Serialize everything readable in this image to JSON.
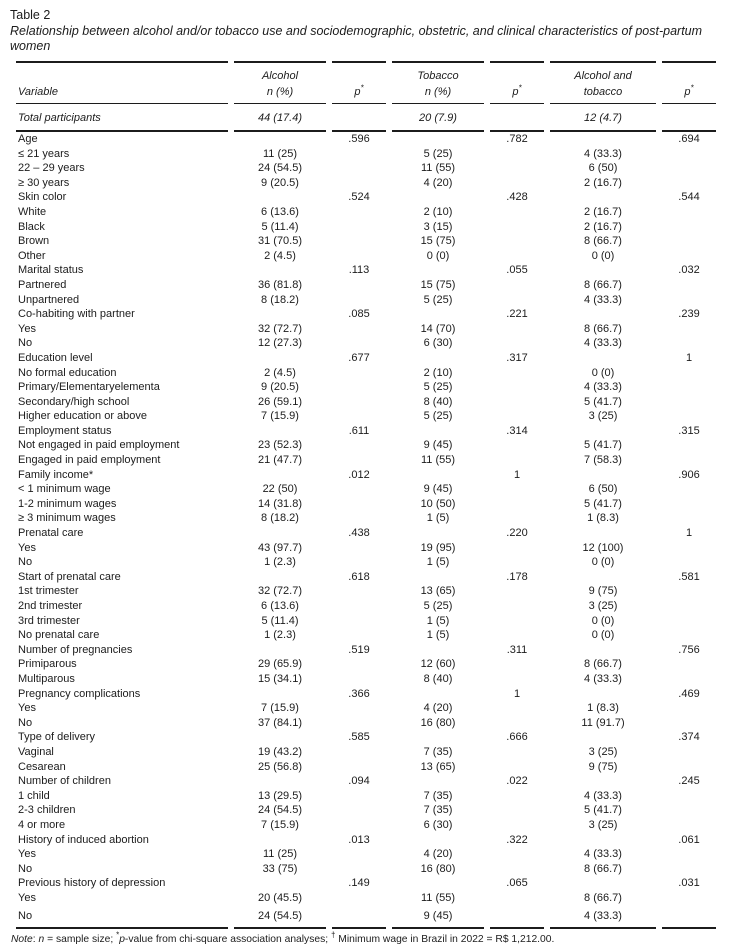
{
  "page": {
    "table_label": "Table 2",
    "title": "Relationship between alcohol and/or tobacco use and sociodemographic, obstetric, and clinical characteristics of post-partum women"
  },
  "header": {
    "variable": "Variable",
    "col1_top": "Alcohol",
    "col1_bottom": "n (%)",
    "col2_top": "Tobacco",
    "col2_bottom": "n (%)",
    "col3_top": "Alcohol and",
    "col3_bottom": "tobacco",
    "p_symbol": "p",
    "p_sup": "*"
  },
  "total_row": {
    "label": "Total participants",
    "alcohol": "44 (17.4)",
    "tobacco": "20 (7.9)",
    "both": "12 (4.7)"
  },
  "rows": [
    {
      "label": "Age",
      "indent": false,
      "alcohol": "",
      "p1": ".596",
      "tobacco": "",
      "p2": ".782",
      "both": "",
      "p3": ".694"
    },
    {
      "label": "≤ 21 years",
      "indent": true,
      "alcohol": "11 (25)",
      "p1": "",
      "tobacco": "5 (25)",
      "p2": "",
      "both": "4 (33.3)",
      "p3": ""
    },
    {
      "label": "22 – 29 years",
      "indent": true,
      "alcohol": "24 (54.5)",
      "p1": "",
      "tobacco": "11 (55)",
      "p2": "",
      "both": "6 (50)",
      "p3": ""
    },
    {
      "label": "≥ 30 years",
      "indent": true,
      "alcohol": "9 (20.5)",
      "p1": "",
      "tobacco": "4 (20)",
      "p2": "",
      "both": "2 (16.7)",
      "p3": ""
    },
    {
      "label": "Skin color",
      "indent": false,
      "alcohol": "",
      "p1": ".524",
      "tobacco": "",
      "p2": ".428",
      "both": "",
      "p3": ".544"
    },
    {
      "label": "White",
      "indent": true,
      "alcohol": "6 (13.6)",
      "p1": "",
      "tobacco": "2 (10)",
      "p2": "",
      "both": "2 (16.7)",
      "p3": ""
    },
    {
      "label": "Black",
      "indent": true,
      "alcohol": "5 (11.4)",
      "p1": "",
      "tobacco": "3 (15)",
      "p2": "",
      "both": "2 (16.7)",
      "p3": ""
    },
    {
      "label": "Brown",
      "indent": true,
      "alcohol": "31 (70.5)",
      "p1": "",
      "tobacco": "15 (75)",
      "p2": "",
      "both": "8 (66.7)",
      "p3": ""
    },
    {
      "label": "Other",
      "indent": true,
      "alcohol": "2 (4.5)",
      "p1": "",
      "tobacco": "0 (0)",
      "p2": "",
      "both": "0 (0)",
      "p3": ""
    },
    {
      "label": "Marital status",
      "indent": false,
      "alcohol": "",
      "p1": ".113",
      "tobacco": "",
      "p2": ".055",
      "both": "",
      "p3": ".032"
    },
    {
      "label": "Partnered",
      "indent": true,
      "alcohol": "36 (81.8)",
      "p1": "",
      "tobacco": "15 (75)",
      "p2": "",
      "both": "8 (66.7)",
      "p3": ""
    },
    {
      "label": "Unpartnered",
      "indent": true,
      "alcohol": "8 (18.2)",
      "p1": "",
      "tobacco": "5 (25)",
      "p2": "",
      "both": "4 (33.3)",
      "p3": ""
    },
    {
      "label": "Co-habiting with partner",
      "indent": false,
      "alcohol": "",
      "p1": ".085",
      "tobacco": "",
      "p2": ".221",
      "both": "",
      "p3": ".239"
    },
    {
      "label": "Yes",
      "indent": true,
      "alcohol": "32 (72.7)",
      "p1": "",
      "tobacco": "14 (70)",
      "p2": "",
      "both": "8 (66.7)",
      "p3": ""
    },
    {
      "label": "No",
      "indent": true,
      "alcohol": "12 (27.3)",
      "p1": "",
      "tobacco": "6 (30)",
      "p2": "",
      "both": "4 (33.3)",
      "p3": ""
    },
    {
      "label": "Education level",
      "indent": false,
      "alcohol": "",
      "p1": ".677",
      "tobacco": "",
      "p2": ".317",
      "both": "",
      "p3": "1"
    },
    {
      "label": "No formal education",
      "indent": true,
      "alcohol": "2 (4.5)",
      "p1": "",
      "tobacco": "2 (10)",
      "p2": "",
      "both": "0 (0)",
      "p3": ""
    },
    {
      "label": "Primary/Elementaryelementa",
      "indent": true,
      "alcohol": "9 (20.5)",
      "p1": "",
      "tobacco": "5 (25)",
      "p2": "",
      "both": "4 (33.3)",
      "p3": ""
    },
    {
      "label": "Secondary/high school",
      "indent": true,
      "alcohol": "26 (59.1)",
      "p1": "",
      "tobacco": "8 (40)",
      "p2": "",
      "both": "5 (41.7)",
      "p3": ""
    },
    {
      "label": "Higher education or above",
      "indent": true,
      "alcohol": "7 (15.9)",
      "p1": "",
      "tobacco": "5 (25)",
      "p2": "",
      "both": "3 (25)",
      "p3": ""
    },
    {
      "label": "Employment status",
      "indent": false,
      "alcohol": "",
      "p1": ".611",
      "tobacco": "",
      "p2": ".314",
      "both": "",
      "p3": ".315"
    },
    {
      "label": "Not engaged in paid employment",
      "indent": true,
      "alcohol": "23 (52.3)",
      "p1": "",
      "tobacco": "9 (45)",
      "p2": "",
      "both": "5 (41.7)",
      "p3": ""
    },
    {
      "label": "Engaged in paid employment",
      "indent": true,
      "alcohol": "21 (47.7)",
      "p1": "",
      "tobacco": "11 (55)",
      "p2": "",
      "both": "7 (58.3)",
      "p3": ""
    },
    {
      "label": "Family income*",
      "indent": false,
      "alcohol": "",
      "p1": ".012",
      "tobacco": "",
      "p2": "1",
      "both": "",
      "p3": ".906"
    },
    {
      "label": "< 1 minimum wage",
      "indent": true,
      "alcohol": "22 (50)",
      "p1": "",
      "tobacco": "9 (45)",
      "p2": "",
      "both": "6 (50)",
      "p3": ""
    },
    {
      "label": "1-2 minimum wages",
      "indent": true,
      "alcohol": "14 (31.8)",
      "p1": "",
      "tobacco": "10 (50)",
      "p2": "",
      "both": "5 (41.7)",
      "p3": ""
    },
    {
      "label": "≥ 3 minimum wages",
      "indent": true,
      "alcohol": "8 (18.2)",
      "p1": "",
      "tobacco": "1 (5)",
      "p2": "",
      "both": "1 (8.3)",
      "p3": ""
    },
    {
      "label": "Prenatal care",
      "indent": false,
      "alcohol": "",
      "p1": ".438",
      "tobacco": "",
      "p2": ".220",
      "both": "",
      "p3": "1"
    },
    {
      "label": "Yes",
      "indent": true,
      "alcohol": "43 (97.7)",
      "p1": "",
      "tobacco": "19 (95)",
      "p2": "",
      "both": "12 (100)",
      "p3": ""
    },
    {
      "label": "No",
      "indent": true,
      "alcohol": "1 (2.3)",
      "p1": "",
      "tobacco": "1 (5)",
      "p2": "",
      "both": "0 (0)",
      "p3": ""
    },
    {
      "label": "Start of prenatal care",
      "indent": false,
      "alcohol": "",
      "p1": ".618",
      "tobacco": "",
      "p2": ".178",
      "both": "",
      "p3": ".581"
    },
    {
      "label": "1st trimester",
      "indent": true,
      "alcohol": "32 (72.7)",
      "p1": "",
      "tobacco": "13 (65)",
      "p2": "",
      "both": "9 (75)",
      "p3": ""
    },
    {
      "label": "2nd trimester",
      "indent": true,
      "alcohol": "6 (13.6)",
      "p1": "",
      "tobacco": "5 (25)",
      "p2": "",
      "both": "3 (25)",
      "p3": ""
    },
    {
      "label": "3rd trimester",
      "indent": true,
      "alcohol": "5 (11.4)",
      "p1": "",
      "tobacco": "1 (5)",
      "p2": "",
      "both": "0 (0)",
      "p3": ""
    },
    {
      "label": "No prenatal care",
      "indent": true,
      "alcohol": "1 (2.3)",
      "p1": "",
      "tobacco": "1 (5)",
      "p2": "",
      "both": "0 (0)",
      "p3": ""
    },
    {
      "label": "Number of pregnancies",
      "indent": false,
      "alcohol": "",
      "p1": ".519",
      "tobacco": "",
      "p2": ".311",
      "both": "",
      "p3": ".756"
    },
    {
      "label": "Primiparous",
      "indent": true,
      "alcohol": "29 (65.9)",
      "p1": "",
      "tobacco": "12 (60)",
      "p2": "",
      "both": "8 (66.7)",
      "p3": ""
    },
    {
      "label": "Multiparous",
      "indent": true,
      "alcohol": "15 (34.1)",
      "p1": "",
      "tobacco": "8 (40)",
      "p2": "",
      "both": "4 (33.3)",
      "p3": ""
    },
    {
      "label": "Pregnancy complications",
      "indent": false,
      "alcohol": "",
      "p1": ".366",
      "tobacco": "",
      "p2": "1",
      "both": "",
      "p3": ".469"
    },
    {
      "label": "Yes",
      "indent": true,
      "alcohol": "7 (15.9)",
      "p1": "",
      "tobacco": "4 (20)",
      "p2": "",
      "both": "1 (8.3)",
      "p3": ""
    },
    {
      "label": "No",
      "indent": true,
      "alcohol": "37 (84.1)",
      "p1": "",
      "tobacco": "16 (80)",
      "p2": "",
      "both": "11 (91.7)",
      "p3": ""
    },
    {
      "label": "Type of delivery",
      "indent": false,
      "alcohol": "",
      "p1": ".585",
      "tobacco": "",
      "p2": ".666",
      "both": "",
      "p3": ".374"
    },
    {
      "label": "Vaginal",
      "indent": true,
      "alcohol": "19 (43.2)",
      "p1": "",
      "tobacco": "7 (35)",
      "p2": "",
      "both": "3 (25)",
      "p3": ""
    },
    {
      "label": "Cesarean",
      "indent": true,
      "alcohol": "25 (56.8)",
      "p1": "",
      "tobacco": "13 (65)",
      "p2": "",
      "both": "9 (75)",
      "p3": ""
    },
    {
      "label": "Number of children",
      "indent": false,
      "alcohol": "",
      "p1": ".094",
      "tobacco": "",
      "p2": ".022",
      "both": "",
      "p3": ".245"
    },
    {
      "label": "1 child",
      "indent": true,
      "alcohol": "13 (29.5)",
      "p1": "",
      "tobacco": "7 (35)",
      "p2": "",
      "both": "4 (33.3)",
      "p3": ""
    },
    {
      "label": "2-3 children",
      "indent": true,
      "alcohol": "24 (54.5)",
      "p1": "",
      "tobacco": "7 (35)",
      "p2": "",
      "both": "5 (41.7)",
      "p3": ""
    },
    {
      "label": "4 or more",
      "indent": true,
      "alcohol": "7 (15.9)",
      "p1": "",
      "tobacco": "6 (30)",
      "p2": "",
      "both": "3 (25)",
      "p3": ""
    },
    {
      "label": "History of induced abortion",
      "indent": false,
      "alcohol": "",
      "p1": ".013",
      "tobacco": "",
      "p2": ".322",
      "both": "",
      "p3": ".061"
    },
    {
      "label": "Yes",
      "indent": true,
      "alcohol": "11 (25)",
      "p1": "",
      "tobacco": "4 (20)",
      "p2": "",
      "both": "4 (33.3)",
      "p3": ""
    },
    {
      "label": "No",
      "indent": true,
      "alcohol": "33 (75)",
      "p1": "",
      "tobacco": "16 (80)",
      "p2": "",
      "both": "8 (66.7)",
      "p3": ""
    },
    {
      "label": "Previous history of depression",
      "indent": false,
      "alcohol": "",
      "p1": ".149",
      "tobacco": "",
      "p2": ".065",
      "both": "",
      "p3": ".031"
    },
    {
      "label": "Yes",
      "indent": true,
      "alcohol": "20 (45.5)",
      "p1": "",
      "tobacco": "11 (55)",
      "p2": "",
      "both": "8 (66.7)",
      "p3": ""
    },
    {
      "label": "No",
      "indent": true,
      "alcohol": "24 (54.5)",
      "p1": "",
      "tobacco": "9 (45)",
      "p2": "",
      "both": "4 (33.3)",
      "p3": ""
    }
  ],
  "footnote_parts": [
    {
      "text": "Note",
      "italic": true,
      "sup": false
    },
    {
      "text": ": ",
      "italic": false,
      "sup": false
    },
    {
      "text": "n",
      "italic": true,
      "sup": false
    },
    {
      "text": " = sample size; ",
      "italic": false,
      "sup": false
    },
    {
      "text": "*",
      "italic": false,
      "sup": true
    },
    {
      "text": "p",
      "italic": true,
      "sup": false
    },
    {
      "text": "-value from chi-square association analyses; ",
      "italic": false,
      "sup": false
    },
    {
      "text": "†",
      "italic": false,
      "sup": true
    },
    {
      "text": " Minimum wage in Brazil in 2022 = R$ 1,212.00.",
      "italic": false,
      "sup": false
    }
  ]
}
